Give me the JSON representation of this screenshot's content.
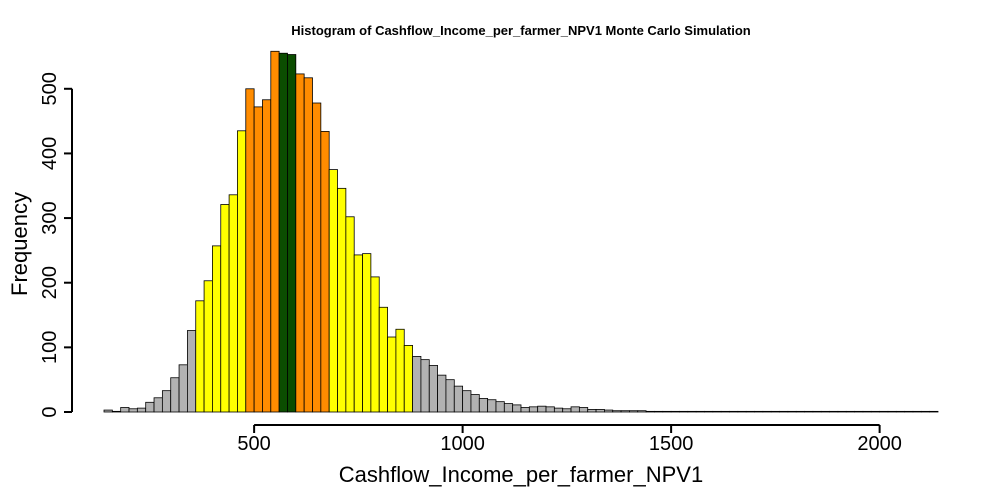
{
  "chart_data": {
    "type": "bar",
    "title": "Histogram of  Cashflow_Income_per_farmer_NPV1  Monte Carlo Simulation",
    "xlabel": "Cashflow_Income_per_farmer_NPV1",
    "ylabel": "Frequency",
    "xlim": [
      140,
      2140
    ],
    "ylim": [
      0,
      560
    ],
    "x_ticks": [
      500,
      1000,
      1500,
      2000
    ],
    "y_ticks": [
      0,
      100,
      200,
      300,
      400,
      500
    ],
    "bin_start": 140,
    "bin_width": 20,
    "values": [
      3,
      1,
      7,
      5,
      6,
      15,
      22,
      33,
      53,
      73,
      126,
      172,
      203,
      257,
      321,
      336,
      435,
      500,
      472,
      483,
      558,
      555,
      553,
      523,
      517,
      478,
      434,
      375,
      346,
      302,
      243,
      245,
      209,
      162,
      116,
      128,
      103,
      86,
      81,
      72,
      57,
      50,
      40,
      33,
      27,
      21,
      19,
      16,
      13,
      11,
      7,
      8,
      9,
      8,
      6,
      5,
      8,
      7,
      4,
      4,
      3,
      2,
      2,
      2,
      2,
      1,
      1,
      1,
      1,
      1,
      1,
      1,
      1,
      1,
      1,
      1,
      1,
      1,
      1,
      1,
      1,
      1,
      1,
      1,
      1,
      1,
      1,
      1,
      1,
      1,
      1,
      1,
      1,
      1,
      1,
      1,
      1,
      1,
      1,
      1
    ],
    "bin_colors": [
      "#b2b2b2",
      "#b2b2b2",
      "#b2b2b2",
      "#b2b2b2",
      "#b2b2b2",
      "#b2b2b2",
      "#b2b2b2",
      "#b2b2b2",
      "#b2b2b2",
      "#b2b2b2",
      "#b2b2b2",
      "#ffff00",
      "#ffff00",
      "#ffff00",
      "#ffff00",
      "#ffff00",
      "#ffff00",
      "#ff8c00",
      "#ff8c00",
      "#ff8c00",
      "#ff8c00",
      "#0b4d00",
      "#0b4d00",
      "#ff8c00",
      "#ff8c00",
      "#ff8c00",
      "#ff8c00",
      "#ffff00",
      "#ffff00",
      "#ffff00",
      "#ffff00",
      "#ffff00",
      "#ffff00",
      "#ffff00",
      "#ffff00",
      "#ffff00",
      "#ffff00",
      "#b2b2b2",
      "#b2b2b2",
      "#b2b2b2",
      "#b2b2b2",
      "#b2b2b2",
      "#b2b2b2",
      "#b2b2b2",
      "#b2b2b2",
      "#b2b2b2",
      "#b2b2b2",
      "#b2b2b2",
      "#b2b2b2",
      "#b2b2b2",
      "#b2b2b2",
      "#b2b2b2",
      "#b2b2b2",
      "#b2b2b2",
      "#b2b2b2",
      "#b2b2b2",
      "#b2b2b2",
      "#b2b2b2",
      "#b2b2b2",
      "#b2b2b2",
      "#b2b2b2",
      "#b2b2b2",
      "#b2b2b2",
      "#b2b2b2",
      "#b2b2b2",
      "#b2b2b2",
      "#b2b2b2",
      "#b2b2b2",
      "#b2b2b2",
      "#b2b2b2",
      "#b2b2b2",
      "#b2b2b2",
      "#b2b2b2",
      "#b2b2b2",
      "#b2b2b2",
      "#b2b2b2",
      "#b2b2b2",
      "#b2b2b2",
      "#b2b2b2",
      "#b2b2b2",
      "#b2b2b2",
      "#b2b2b2",
      "#b2b2b2",
      "#b2b2b2",
      "#b2b2b2",
      "#b2b2b2",
      "#b2b2b2",
      "#b2b2b2",
      "#b2b2b2",
      "#b2b2b2",
      "#b2b2b2",
      "#b2b2b2",
      "#b2b2b2",
      "#b2b2b2",
      "#b2b2b2",
      "#b2b2b2",
      "#b2b2b2",
      "#b2b2b2",
      "#b2b2b2",
      "#b2b2b2"
    ],
    "grid": false,
    "legend": "none"
  }
}
